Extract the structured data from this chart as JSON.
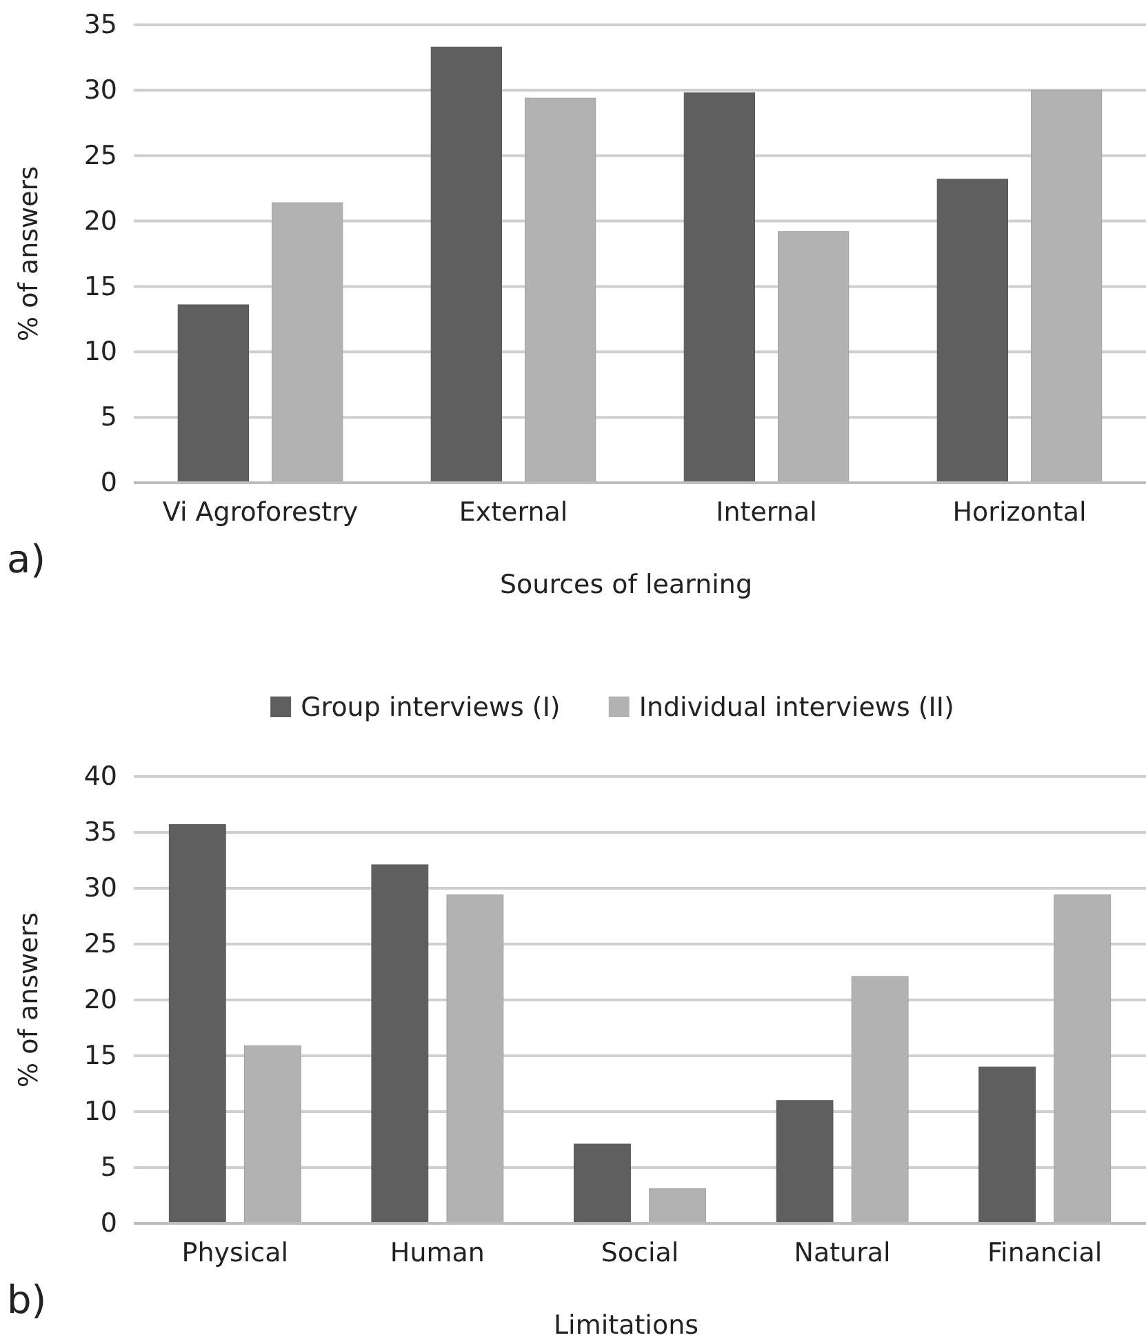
{
  "chart_data": [
    {
      "type": "bar",
      "xlabel": "Sources of learning",
      "ylabel": "% of answers",
      "categories": [
        "Vi Agroforestry",
        "External",
        "Internal",
        "Horizontal"
      ],
      "series": [
        {
          "color": "#5f5f5f",
          "values": [
            13.6,
            33.3,
            29.8,
            23.2
          ]
        },
        {
          "color": "#b2b2b2",
          "values": [
            21.4,
            29.4,
            19.2,
            30.0
          ]
        }
      ],
      "ylim": [
        0,
        35
      ],
      "yticks": [
        0,
        5,
        10,
        15,
        20,
        25,
        30,
        35
      ],
      "grid": "y",
      "legend": false,
      "annotations": [
        "a)"
      ]
    },
    {
      "type": "bar",
      "xlabel": "Limitations",
      "ylabel": "% of answers",
      "categories": [
        "Physical",
        "Human",
        "Social",
        "Natural",
        "Financial"
      ],
      "series": [
        {
          "name": "Group interviews (I)",
          "color": "#5f5f5f",
          "values": [
            35.7,
            32.1,
            7.1,
            11.0,
            14.0
          ]
        },
        {
          "name": "Individual interviews (II)",
          "color": "#b2b2b2",
          "values": [
            15.9,
            29.4,
            3.1,
            22.1,
            29.4
          ]
        }
      ],
      "ylim": [
        0,
        40
      ],
      "yticks": [
        0,
        5,
        10,
        15,
        20,
        25,
        30,
        35,
        40
      ],
      "grid": "y",
      "legend": "top",
      "annotations": [
        "b)"
      ]
    }
  ]
}
